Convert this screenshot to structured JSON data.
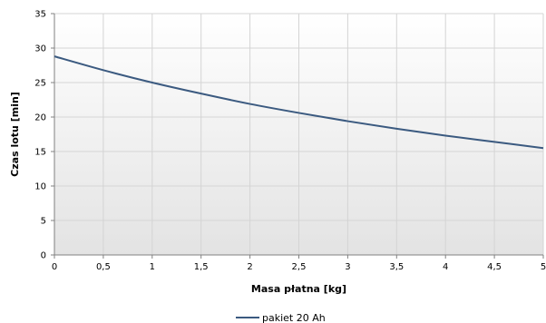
{
  "chart_data": {
    "type": "line",
    "title": "",
    "xlabel": "Masa płatna [kg]",
    "ylabel": "Czas lotu [min]",
    "xlim": [
      0,
      5
    ],
    "ylim": [
      0,
      35
    ],
    "x_ticks": [
      0,
      0.5,
      1,
      1.5,
      2,
      2.5,
      3,
      3.5,
      4,
      4.5,
      5
    ],
    "x_tick_labels": [
      "0",
      "0,5",
      "1",
      "1,5",
      "2",
      "2,5",
      "3",
      "3,5",
      "4",
      "4,5",
      "5"
    ],
    "y_ticks": [
      0,
      5,
      10,
      15,
      20,
      25,
      30,
      35
    ],
    "y_tick_labels": [
      "0",
      "5",
      "10",
      "15",
      "20",
      "25",
      "30",
      "35"
    ],
    "grid": true,
    "legend_position": "bottom",
    "series": [
      {
        "name": "pakiet 20 Ah",
        "color": "#3b5a80",
        "x": [
          0,
          0.5,
          1,
          1.5,
          2,
          2.5,
          3,
          3.5,
          4,
          4.5,
          5
        ],
        "y": [
          28.8,
          26.8,
          25.0,
          23.4,
          21.9,
          20.6,
          19.4,
          18.3,
          17.3,
          16.4,
          15.5
        ]
      }
    ]
  }
}
